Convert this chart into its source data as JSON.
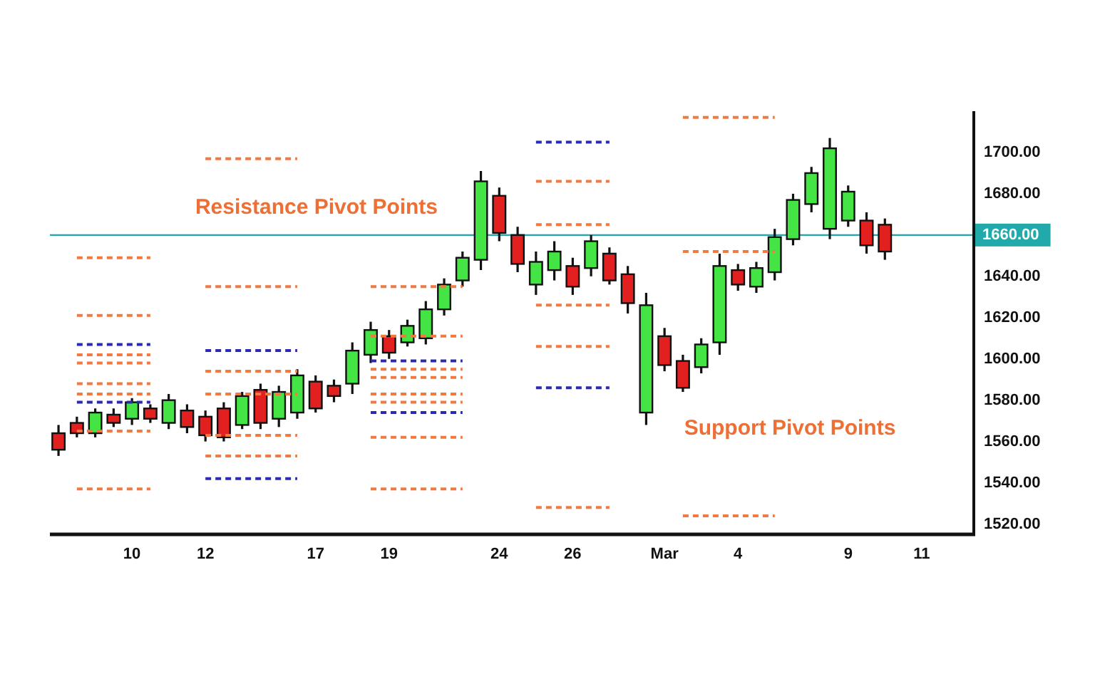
{
  "chart_data": {
    "type": "candlestick",
    "categories": [
      null,
      null,
      null,
      null,
      "10",
      null,
      null,
      null,
      "12",
      null,
      null,
      null,
      null,
      null,
      "17",
      null,
      null,
      null,
      "19",
      null,
      null,
      null,
      null,
      null,
      "24",
      null,
      null,
      null,
      "26",
      null,
      null,
      null,
      null,
      "Mar",
      null,
      null,
      null,
      "4",
      null,
      null,
      null,
      null,
      null,
      "9",
      null,
      null,
      null,
      "11",
      null,
      null
    ],
    "ohlc": [
      [
        1564,
        1568,
        1553,
        1556
      ],
      [
        1569,
        1572,
        1562,
        1564
      ],
      [
        1564,
        1576,
        1562,
        1574
      ],
      [
        1573,
        1576,
        1567,
        1569
      ],
      [
        1571,
        1581,
        1568,
        1579
      ],
      [
        1576,
        1578,
        1569,
        1571
      ],
      [
        1569,
        1583,
        1566,
        1580
      ],
      [
        1575,
        1578,
        1564,
        1567
      ],
      [
        1572,
        1575,
        1560,
        1563
      ],
      [
        1576,
        1579,
        1560,
        1562
      ],
      [
        1568,
        1584,
        1566,
        1582
      ],
      [
        1585,
        1588,
        1566,
        1569
      ],
      [
        1571,
        1587,
        1567,
        1584
      ],
      [
        1574,
        1595,
        1571,
        1592
      ],
      [
        1589,
        1592,
        1574,
        1576
      ],
      [
        1587,
        1590,
        1579,
        1582
      ],
      [
        1588,
        1608,
        1583,
        1604
      ],
      [
        1602,
        1618,
        1598,
        1614
      ],
      [
        1611,
        1614,
        1600,
        1603
      ],
      [
        1608,
        1619,
        1606,
        1616
      ],
      [
        1610,
        1628,
        1607,
        1624
      ],
      [
        1624,
        1639,
        1621,
        1636
      ],
      [
        1638,
        1652,
        1635,
        1649
      ],
      [
        1648,
        1691,
        1643,
        1686
      ],
      [
        1679,
        1683,
        1657,
        1661
      ],
      [
        1660,
        1664,
        1642,
        1646
      ],
      [
        1636,
        1652,
        1631,
        1647
      ],
      [
        1643,
        1657,
        1638,
        1652
      ],
      [
        1645,
        1649,
        1631,
        1635
      ],
      [
        1644,
        1660,
        1640,
        1657
      ],
      [
        1651,
        1654,
        1636,
        1638
      ],
      [
        1641,
        1645,
        1622,
        1627
      ],
      [
        1574,
        1632,
        1568,
        1626
      ],
      [
        1611,
        1615,
        1594,
        1597
      ],
      [
        1599,
        1602,
        1584,
        1586
      ],
      [
        1596,
        1610,
        1593,
        1607
      ],
      [
        1608,
        1651,
        1602,
        1645
      ],
      [
        1643,
        1646,
        1633,
        1636
      ],
      [
        1635,
        1647,
        1632,
        1644
      ],
      [
        1642,
        1663,
        1638,
        1659
      ],
      [
        1658,
        1680,
        1655,
        1677
      ],
      [
        1675,
        1693,
        1671,
        1690
      ],
      [
        1663,
        1707,
        1658,
        1702
      ],
      [
        1667,
        1684,
        1664,
        1681
      ],
      [
        1667,
        1671,
        1651,
        1655
      ],
      [
        1665,
        1668,
        1648,
        1652
      ],
      null,
      null,
      null,
      null
    ],
    "colors": [
      "#e32020",
      "#e32020",
      "#44e444",
      "#e32020",
      "#44e444",
      "#e32020",
      "#44e444",
      "#e32020",
      "#e32020",
      "#e32020",
      "#44e444",
      "#e32020",
      "#44e444",
      "#44e444",
      "#e32020",
      "#e32020",
      "#44e444",
      "#44e444",
      "#e32020",
      "#44e444",
      "#44e444",
      "#44e444",
      "#44e444",
      "#44e444",
      "#e32020",
      "#e32020",
      "#44e444",
      "#44e444",
      "#e32020",
      "#44e444",
      "#e32020",
      "#e32020",
      "#44e444",
      "#e32020",
      "#e32020",
      "#44e444",
      "#44e444",
      "#e32020",
      "#44e444",
      "#44e444",
      "#44e444",
      "#44e444",
      "#44e444",
      "#44e444",
      "#e32020",
      "#e32020",
      null,
      null,
      null,
      null
    ],
    "series": [
      {
        "type": "line",
        "color": "#f07a42",
        "values": [
          null,
          1649,
          1649,
          1649,
          1649,
          1649,
          null,
          null,
          null,
          null,
          null,
          null,
          null,
          null,
          null,
          null,
          null,
          null,
          null,
          null,
          null,
          null,
          null,
          null,
          null,
          null,
          null,
          null,
          null,
          null,
          null,
          null,
          null,
          null,
          null,
          null,
          null,
          null,
          null,
          null,
          null,
          null,
          null,
          null,
          null,
          null,
          null,
          null,
          null,
          null
        ]
      },
      {
        "type": "line",
        "color": "#f07a42",
        "values": [
          null,
          1621,
          1621,
          1621,
          1621,
          1621,
          null,
          null,
          null,
          null,
          null,
          null,
          null,
          null,
          null,
          null,
          null,
          null,
          null,
          null,
          null,
          null,
          null,
          null,
          null,
          null,
          null,
          null,
          null,
          null,
          null,
          null,
          null,
          null,
          null,
          null,
          null,
          null,
          null,
          null,
          null,
          null,
          null,
          null,
          null,
          null,
          null,
          null,
          null,
          null
        ]
      },
      {
        "type": "line",
        "color": "#2b2bb0",
        "values": [
          null,
          1607,
          1607,
          1607,
          1607,
          1607,
          null,
          null,
          null,
          null,
          null,
          null,
          null,
          null,
          null,
          null,
          null,
          null,
          null,
          null,
          null,
          null,
          null,
          null,
          null,
          null,
          null,
          null,
          null,
          null,
          null,
          null,
          null,
          null,
          null,
          null,
          null,
          null,
          null,
          null,
          null,
          null,
          null,
          null,
          null,
          null,
          null,
          null,
          null,
          null
        ]
      },
      {
        "type": "line",
        "color": "#f07a42",
        "values": [
          null,
          1602,
          1602,
          1602,
          1602,
          1602,
          null,
          null,
          null,
          null,
          null,
          null,
          null,
          null,
          null,
          null,
          null,
          null,
          null,
          null,
          null,
          null,
          null,
          null,
          null,
          null,
          null,
          null,
          null,
          null,
          null,
          null,
          null,
          null,
          null,
          null,
          null,
          null,
          null,
          null,
          null,
          null,
          null,
          null,
          null,
          null,
          null,
          null,
          null,
          null
        ]
      },
      {
        "type": "line",
        "color": "#f07a42",
        "values": [
          null,
          1598,
          1598,
          1598,
          1598,
          1598,
          null,
          null,
          null,
          null,
          null,
          null,
          null,
          null,
          null,
          null,
          null,
          null,
          null,
          null,
          null,
          null,
          null,
          null,
          null,
          null,
          null,
          null,
          null,
          null,
          null,
          null,
          null,
          null,
          null,
          null,
          null,
          null,
          null,
          null,
          null,
          null,
          null,
          null,
          null,
          null,
          null,
          null,
          null,
          null
        ]
      },
      {
        "type": "line",
        "color": "#f07a42",
        "values": [
          null,
          1588,
          1588,
          1588,
          1588,
          1588,
          null,
          null,
          null,
          null,
          null,
          null,
          null,
          null,
          null,
          null,
          null,
          null,
          null,
          null,
          null,
          null,
          null,
          null,
          null,
          null,
          null,
          null,
          null,
          null,
          null,
          null,
          null,
          null,
          null,
          null,
          null,
          null,
          null,
          null,
          null,
          null,
          null,
          null,
          null,
          null,
          null,
          null,
          null,
          null
        ]
      },
      {
        "type": "line",
        "color": "#f07a42",
        "values": [
          null,
          1583,
          1583,
          1583,
          1583,
          1583,
          null,
          null,
          null,
          null,
          null,
          null,
          null,
          null,
          null,
          null,
          null,
          null,
          null,
          null,
          null,
          null,
          null,
          null,
          null,
          null,
          null,
          null,
          null,
          null,
          null,
          null,
          null,
          null,
          null,
          null,
          null,
          null,
          null,
          null,
          null,
          null,
          null,
          null,
          null,
          null,
          null,
          null,
          null,
          null
        ]
      },
      {
        "type": "line",
        "color": "#2b2bb0",
        "values": [
          null,
          1579,
          1579,
          1579,
          1579,
          1579,
          null,
          null,
          null,
          null,
          null,
          null,
          null,
          null,
          null,
          null,
          null,
          null,
          null,
          null,
          null,
          null,
          null,
          null,
          null,
          null,
          null,
          null,
          null,
          null,
          null,
          null,
          null,
          null,
          null,
          null,
          null,
          null,
          null,
          null,
          null,
          null,
          null,
          null,
          null,
          null,
          null,
          null,
          null,
          null
        ]
      },
      {
        "type": "line",
        "color": "#f07a42",
        "values": [
          null,
          1565,
          1565,
          1565,
          1565,
          1565,
          null,
          null,
          null,
          null,
          null,
          null,
          null,
          null,
          null,
          null,
          null,
          null,
          null,
          null,
          null,
          null,
          null,
          null,
          null,
          null,
          null,
          null,
          null,
          null,
          null,
          null,
          null,
          null,
          null,
          null,
          null,
          null,
          null,
          null,
          null,
          null,
          null,
          null,
          null,
          null,
          null,
          null,
          null,
          null
        ]
      },
      {
        "type": "line",
        "color": "#f07a42",
        "values": [
          null,
          1537,
          1537,
          1537,
          1537,
          1537,
          null,
          null,
          null,
          null,
          null,
          null,
          null,
          null,
          null,
          null,
          null,
          null,
          null,
          null,
          null,
          null,
          null,
          null,
          null,
          null,
          null,
          null,
          null,
          null,
          null,
          null,
          null,
          null,
          null,
          null,
          null,
          null,
          null,
          null,
          null,
          null,
          null,
          null,
          null,
          null,
          null,
          null,
          null,
          null
        ]
      },
      {
        "type": "line",
        "color": "#f07a42",
        "values": [
          null,
          null,
          null,
          null,
          null,
          null,
          null,
          null,
          1697,
          1697,
          1697,
          1697,
          1697,
          1697,
          null,
          null,
          null,
          null,
          null,
          null,
          null,
          null,
          null,
          null,
          null,
          null,
          null,
          null,
          null,
          null,
          null,
          null,
          null,
          null,
          null,
          null,
          null,
          null,
          null,
          null,
          null,
          null,
          null,
          null,
          null,
          null,
          null,
          null,
          null,
          null
        ]
      },
      {
        "type": "line",
        "color": "#f07a42",
        "values": [
          null,
          null,
          null,
          null,
          null,
          null,
          null,
          null,
          1635,
          1635,
          1635,
          1635,
          1635,
          1635,
          null,
          null,
          null,
          null,
          null,
          null,
          null,
          null,
          null,
          null,
          null,
          null,
          null,
          null,
          null,
          null,
          null,
          null,
          null,
          null,
          null,
          null,
          null,
          null,
          null,
          null,
          null,
          null,
          null,
          null,
          null,
          null,
          null,
          null,
          null,
          null
        ]
      },
      {
        "type": "line",
        "color": "#2b2bb0",
        "values": [
          null,
          null,
          null,
          null,
          null,
          null,
          null,
          null,
          1604,
          1604,
          1604,
          1604,
          1604,
          1604,
          null,
          null,
          null,
          null,
          null,
          null,
          null,
          null,
          null,
          null,
          null,
          null,
          null,
          null,
          null,
          null,
          null,
          null,
          null,
          null,
          null,
          null,
          null,
          null,
          null,
          null,
          null,
          null,
          null,
          null,
          null,
          null,
          null,
          null,
          null,
          null
        ]
      },
      {
        "type": "line",
        "color": "#f07a42",
        "values": [
          null,
          null,
          null,
          null,
          null,
          null,
          null,
          null,
          1594,
          1594,
          1594,
          1594,
          1594,
          1594,
          null,
          null,
          null,
          null,
          null,
          null,
          null,
          null,
          null,
          null,
          null,
          null,
          null,
          null,
          null,
          null,
          null,
          null,
          null,
          null,
          null,
          null,
          null,
          null,
          null,
          null,
          null,
          null,
          null,
          null,
          null,
          null,
          null,
          null,
          null,
          null
        ]
      },
      {
        "type": "line",
        "color": "#f07a42",
        "values": [
          null,
          null,
          null,
          null,
          null,
          null,
          null,
          null,
          1583,
          1583,
          1583,
          1583,
          1583,
          1583,
          null,
          null,
          null,
          null,
          null,
          null,
          null,
          null,
          null,
          null,
          null,
          null,
          null,
          null,
          null,
          null,
          null,
          null,
          null,
          null,
          null,
          null,
          null,
          null,
          null,
          null,
          null,
          null,
          null,
          null,
          null,
          null,
          null,
          null,
          null,
          null
        ]
      },
      {
        "type": "line",
        "color": "#f07a42",
        "values": [
          null,
          null,
          null,
          null,
          null,
          null,
          null,
          null,
          1563,
          1563,
          1563,
          1563,
          1563,
          1563,
          null,
          null,
          null,
          null,
          null,
          null,
          null,
          null,
          null,
          null,
          null,
          null,
          null,
          null,
          null,
          null,
          null,
          null,
          null,
          null,
          null,
          null,
          null,
          null,
          null,
          null,
          null,
          null,
          null,
          null,
          null,
          null,
          null,
          null,
          null,
          null
        ]
      },
      {
        "type": "line",
        "color": "#f07a42",
        "values": [
          null,
          null,
          null,
          null,
          null,
          null,
          null,
          null,
          1553,
          1553,
          1553,
          1553,
          1553,
          1553,
          null,
          null,
          null,
          null,
          null,
          null,
          null,
          null,
          null,
          null,
          null,
          null,
          null,
          null,
          null,
          null,
          null,
          null,
          null,
          null,
          null,
          null,
          null,
          null,
          null,
          null,
          null,
          null,
          null,
          null,
          null,
          null,
          null,
          null,
          null,
          null
        ]
      },
      {
        "type": "line",
        "color": "#2b2bb0",
        "values": [
          null,
          null,
          null,
          null,
          null,
          null,
          null,
          null,
          1542,
          1542,
          1542,
          1542,
          1542,
          1542,
          null,
          null,
          null,
          null,
          null,
          null,
          null,
          null,
          null,
          null,
          null,
          null,
          null,
          null,
          null,
          null,
          null,
          null,
          null,
          null,
          null,
          null,
          null,
          null,
          null,
          null,
          null,
          null,
          null,
          null,
          null,
          null,
          null,
          null,
          null,
          null
        ]
      },
      {
        "type": "line",
        "color": "#f07a42",
        "values": [
          null,
          null,
          null,
          null,
          null,
          null,
          null,
          null,
          null,
          null,
          null,
          null,
          null,
          null,
          null,
          null,
          null,
          1635,
          1635,
          1635,
          1635,
          1635,
          1635,
          null,
          null,
          null,
          null,
          null,
          null,
          null,
          null,
          null,
          null,
          null,
          null,
          null,
          null,
          null,
          null,
          null,
          null,
          null,
          null,
          null,
          null,
          null,
          null,
          null,
          null,
          null
        ]
      },
      {
        "type": "line",
        "color": "#f07a42",
        "values": [
          null,
          null,
          null,
          null,
          null,
          null,
          null,
          null,
          null,
          null,
          null,
          null,
          null,
          null,
          null,
          null,
          null,
          1611,
          1611,
          1611,
          1611,
          1611,
          1611,
          null,
          null,
          null,
          null,
          null,
          null,
          null,
          null,
          null,
          null,
          null,
          null,
          null,
          null,
          null,
          null,
          null,
          null,
          null,
          null,
          null,
          null,
          null,
          null,
          null,
          null,
          null
        ]
      },
      {
        "type": "line",
        "color": "#2b2bb0",
        "values": [
          null,
          null,
          null,
          null,
          null,
          null,
          null,
          null,
          null,
          null,
          null,
          null,
          null,
          null,
          null,
          null,
          null,
          1599,
          1599,
          1599,
          1599,
          1599,
          1599,
          null,
          null,
          null,
          null,
          null,
          null,
          null,
          null,
          null,
          null,
          null,
          null,
          null,
          null,
          null,
          null,
          null,
          null,
          null,
          null,
          null,
          null,
          null,
          null,
          null,
          null,
          null
        ]
      },
      {
        "type": "line",
        "color": "#f07a42",
        "values": [
          null,
          null,
          null,
          null,
          null,
          null,
          null,
          null,
          null,
          null,
          null,
          null,
          null,
          null,
          null,
          null,
          null,
          1595,
          1595,
          1595,
          1595,
          1595,
          1595,
          null,
          null,
          null,
          null,
          null,
          null,
          null,
          null,
          null,
          null,
          null,
          null,
          null,
          null,
          null,
          null,
          null,
          null,
          null,
          null,
          null,
          null,
          null,
          null,
          null,
          null,
          null
        ]
      },
      {
        "type": "line",
        "color": "#f07a42",
        "values": [
          null,
          null,
          null,
          null,
          null,
          null,
          null,
          null,
          null,
          null,
          null,
          null,
          null,
          null,
          null,
          null,
          null,
          1591,
          1591,
          1591,
          1591,
          1591,
          1591,
          null,
          null,
          null,
          null,
          null,
          null,
          null,
          null,
          null,
          null,
          null,
          null,
          null,
          null,
          null,
          null,
          null,
          null,
          null,
          null,
          null,
          null,
          null,
          null,
          null,
          null,
          null
        ]
      },
      {
        "type": "line",
        "color": "#f07a42",
        "values": [
          null,
          null,
          null,
          null,
          null,
          null,
          null,
          null,
          null,
          null,
          null,
          null,
          null,
          null,
          null,
          null,
          null,
          1583,
          1583,
          1583,
          1583,
          1583,
          1583,
          null,
          null,
          null,
          null,
          null,
          null,
          null,
          null,
          null,
          null,
          null,
          null,
          null,
          null,
          null,
          null,
          null,
          null,
          null,
          null,
          null,
          null,
          null,
          null,
          null,
          null,
          null
        ]
      },
      {
        "type": "line",
        "color": "#f07a42",
        "values": [
          null,
          null,
          null,
          null,
          null,
          null,
          null,
          null,
          null,
          null,
          null,
          null,
          null,
          null,
          null,
          null,
          null,
          1579,
          1579,
          1579,
          1579,
          1579,
          1579,
          null,
          null,
          null,
          null,
          null,
          null,
          null,
          null,
          null,
          null,
          null,
          null,
          null,
          null,
          null,
          null,
          null,
          null,
          null,
          null,
          null,
          null,
          null,
          null,
          null,
          null,
          null
        ]
      },
      {
        "type": "line",
        "color": "#2b2bb0",
        "values": [
          null,
          null,
          null,
          null,
          null,
          null,
          null,
          null,
          null,
          null,
          null,
          null,
          null,
          null,
          null,
          null,
          null,
          1574,
          1574,
          1574,
          1574,
          1574,
          1574,
          null,
          null,
          null,
          null,
          null,
          null,
          null,
          null,
          null,
          null,
          null,
          null,
          null,
          null,
          null,
          null,
          null,
          null,
          null,
          null,
          null,
          null,
          null,
          null,
          null,
          null,
          null
        ]
      },
      {
        "type": "line",
        "color": "#f07a42",
        "values": [
          null,
          null,
          null,
          null,
          null,
          null,
          null,
          null,
          null,
          null,
          null,
          null,
          null,
          null,
          null,
          null,
          null,
          1562,
          1562,
          1562,
          1562,
          1562,
          1562,
          null,
          null,
          null,
          null,
          null,
          null,
          null,
          null,
          null,
          null,
          null,
          null,
          null,
          null,
          null,
          null,
          null,
          null,
          null,
          null,
          null,
          null,
          null,
          null,
          null,
          null,
          null
        ]
      },
      {
        "type": "line",
        "color": "#f07a42",
        "values": [
          null,
          null,
          null,
          null,
          null,
          null,
          null,
          null,
          null,
          null,
          null,
          null,
          null,
          null,
          null,
          null,
          null,
          1537,
          1537,
          1537,
          1537,
          1537,
          1537,
          null,
          null,
          null,
          null,
          null,
          null,
          null,
          null,
          null,
          null,
          null,
          null,
          null,
          null,
          null,
          null,
          null,
          null,
          null,
          null,
          null,
          null,
          null,
          null,
          null,
          null,
          null
        ]
      },
      {
        "type": "line",
        "color": "#2b2bb0",
        "values": [
          null,
          null,
          null,
          null,
          null,
          null,
          null,
          null,
          null,
          null,
          null,
          null,
          null,
          null,
          null,
          null,
          null,
          null,
          null,
          null,
          null,
          null,
          null,
          null,
          null,
          null,
          1705,
          1705,
          1705,
          1705,
          1705,
          null,
          null,
          null,
          null,
          null,
          null,
          null,
          null,
          null,
          null,
          null,
          null,
          null,
          null,
          null,
          null,
          null,
          null,
          null
        ]
      },
      {
        "type": "line",
        "color": "#f07a42",
        "values": [
          null,
          null,
          null,
          null,
          null,
          null,
          null,
          null,
          null,
          null,
          null,
          null,
          null,
          null,
          null,
          null,
          null,
          null,
          null,
          null,
          null,
          null,
          null,
          null,
          null,
          null,
          1686,
          1686,
          1686,
          1686,
          1686,
          null,
          null,
          null,
          null,
          null,
          null,
          null,
          null,
          null,
          null,
          null,
          null,
          null,
          null,
          null,
          null,
          null,
          null,
          null
        ]
      },
      {
        "type": "line",
        "color": "#f07a42",
        "values": [
          null,
          null,
          null,
          null,
          null,
          null,
          null,
          null,
          null,
          null,
          null,
          null,
          null,
          null,
          null,
          null,
          null,
          null,
          null,
          null,
          null,
          null,
          null,
          null,
          null,
          null,
          1665,
          1665,
          1665,
          1665,
          1665,
          null,
          null,
          null,
          null,
          null,
          null,
          null,
          null,
          null,
          null,
          null,
          null,
          null,
          null,
          null,
          null,
          null,
          null,
          null
        ]
      },
      {
        "type": "line",
        "color": "#f07a42",
        "values": [
          null,
          null,
          null,
          null,
          null,
          null,
          null,
          null,
          null,
          null,
          null,
          null,
          null,
          null,
          null,
          null,
          null,
          null,
          null,
          null,
          null,
          null,
          null,
          null,
          null,
          null,
          1626,
          1626,
          1626,
          1626,
          1626,
          null,
          null,
          null,
          null,
          null,
          null,
          null,
          null,
          null,
          null,
          null,
          null,
          null,
          null,
          null,
          null,
          null,
          null,
          null
        ]
      },
      {
        "type": "line",
        "color": "#f07a42",
        "values": [
          null,
          null,
          null,
          null,
          null,
          null,
          null,
          null,
          null,
          null,
          null,
          null,
          null,
          null,
          null,
          null,
          null,
          null,
          null,
          null,
          null,
          null,
          null,
          null,
          null,
          null,
          1606,
          1606,
          1606,
          1606,
          1606,
          null,
          null,
          null,
          null,
          null,
          null,
          null,
          null,
          null,
          null,
          null,
          null,
          null,
          null,
          null,
          null,
          null,
          null,
          null
        ]
      },
      {
        "type": "line",
        "color": "#2b2bb0",
        "values": [
          null,
          null,
          null,
          null,
          null,
          null,
          null,
          null,
          null,
          null,
          null,
          null,
          null,
          null,
          null,
          null,
          null,
          null,
          null,
          null,
          null,
          null,
          null,
          null,
          null,
          null,
          1586,
          1586,
          1586,
          1586,
          1586,
          null,
          null,
          null,
          null,
          null,
          null,
          null,
          null,
          null,
          null,
          null,
          null,
          null,
          null,
          null,
          null,
          null,
          null,
          null
        ]
      },
      {
        "type": "line",
        "color": "#f07a42",
        "values": [
          null,
          null,
          null,
          null,
          null,
          null,
          null,
          null,
          null,
          null,
          null,
          null,
          null,
          null,
          null,
          null,
          null,
          null,
          null,
          null,
          null,
          null,
          null,
          null,
          null,
          null,
          1528,
          1528,
          1528,
          1528,
          1528,
          null,
          null,
          null,
          null,
          null,
          null,
          null,
          null,
          null,
          null,
          null,
          null,
          null,
          null,
          null,
          null,
          null,
          null,
          null
        ]
      },
      {
        "type": "line",
        "color": "#f07a42",
        "values": [
          null,
          null,
          null,
          null,
          null,
          null,
          null,
          null,
          null,
          null,
          null,
          null,
          null,
          null,
          null,
          null,
          null,
          null,
          null,
          null,
          null,
          null,
          null,
          null,
          null,
          null,
          null,
          null,
          null,
          null,
          null,
          null,
          null,
          null,
          1717,
          1717,
          1717,
          1717,
          1717,
          1717,
          null,
          null,
          null,
          null,
          null,
          null,
          null,
          null,
          null,
          null
        ]
      },
      {
        "type": "line",
        "color": "#f07a42",
        "values": [
          null,
          null,
          null,
          null,
          null,
          null,
          null,
          null,
          null,
          null,
          null,
          null,
          null,
          null,
          null,
          null,
          null,
          null,
          null,
          null,
          null,
          null,
          null,
          null,
          null,
          null,
          null,
          null,
          null,
          null,
          null,
          null,
          null,
          null,
          1652,
          1652,
          1652,
          1652,
          1652,
          1652,
          null,
          null,
          null,
          null,
          null,
          null,
          null,
          null,
          null,
          null
        ]
      },
      {
        "type": "line",
        "color": "#f07a42",
        "values": [
          null,
          null,
          null,
          null,
          null,
          null,
          null,
          null,
          null,
          null,
          null,
          null,
          null,
          null,
          null,
          null,
          null,
          null,
          null,
          null,
          null,
          null,
          null,
          null,
          null,
          null,
          null,
          null,
          null,
          null,
          null,
          null,
          null,
          null,
          1524,
          1524,
          1524,
          1524,
          1524,
          1524,
          null,
          null,
          null,
          null,
          null,
          null,
          null,
          null,
          null,
          null
        ]
      }
    ],
    "line_style": "dashed",
    "ylim": [
      1515,
      1720
    ],
    "yticks": [
      {
        "value": 1520,
        "label": "1520.00"
      },
      {
        "value": 1540,
        "label": "1540.00"
      },
      {
        "value": 1560,
        "label": "1560.00"
      },
      {
        "value": 1580,
        "label": "1580.00"
      },
      {
        "value": 1600,
        "label": "1600.00"
      },
      {
        "value": 1620,
        "label": "1620.00"
      },
      {
        "value": 1640,
        "label": "1640.00"
      },
      {
        "value": 1680,
        "label": "1680.00"
      },
      {
        "value": 1700,
        "label": "1700.00"
      }
    ],
    "ref_lines": [
      {
        "axis": "y",
        "value": 1660,
        "label": "1660.00",
        "color": "#22a9a9"
      }
    ],
    "annotations": [
      "Resistance Pivot Points",
      "Support Pivot Points"
    ]
  }
}
